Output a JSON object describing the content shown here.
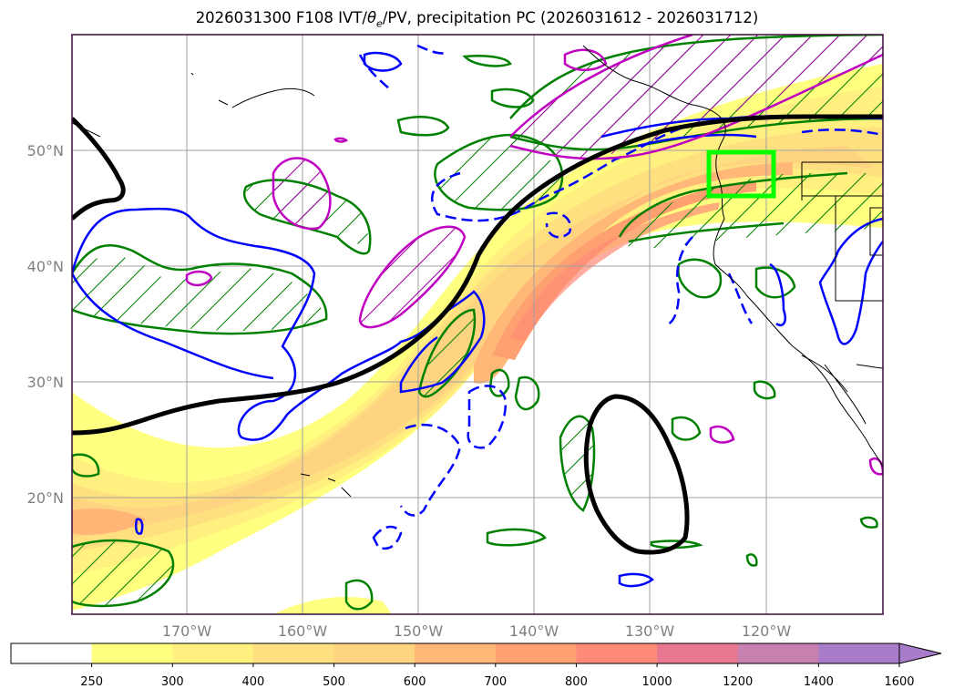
{
  "title": {
    "prefix": "2026031300 F108 IVT/",
    "theta": "θ",
    "theta_sub": "e",
    "suffix": "/PV, precipitation PC (2026031612 - 2026031712)"
  },
  "map": {
    "lon_labels": [
      "170°W",
      "160°W",
      "150°W",
      "140°W",
      "130°W",
      "120°W"
    ],
    "lat_labels": [
      "50°N",
      "40°N",
      "30°N",
      "20°N"
    ],
    "gridlines": true
  },
  "colorbar": {
    "labels": [
      "250",
      "300",
      "400",
      "500",
      "600",
      "700",
      "800",
      "1000",
      "1200",
      "1400",
      "1600"
    ],
    "colors": [
      "#ffffff",
      "#ffff80",
      "#fff080",
      "#ffe080",
      "#ffd480",
      "#ffb878",
      "#ffa070",
      "#ff8a78",
      "#e87890",
      "#c880b0",
      "#a87cc8"
    ],
    "extend": "max"
  },
  "legend_colors": {
    "pv_contour": "#000000",
    "theta_e_positive": "#0000ff",
    "precip_pc": "#008000",
    "other_contour": "#c000c0",
    "target_box": "#00ff00"
  }
}
